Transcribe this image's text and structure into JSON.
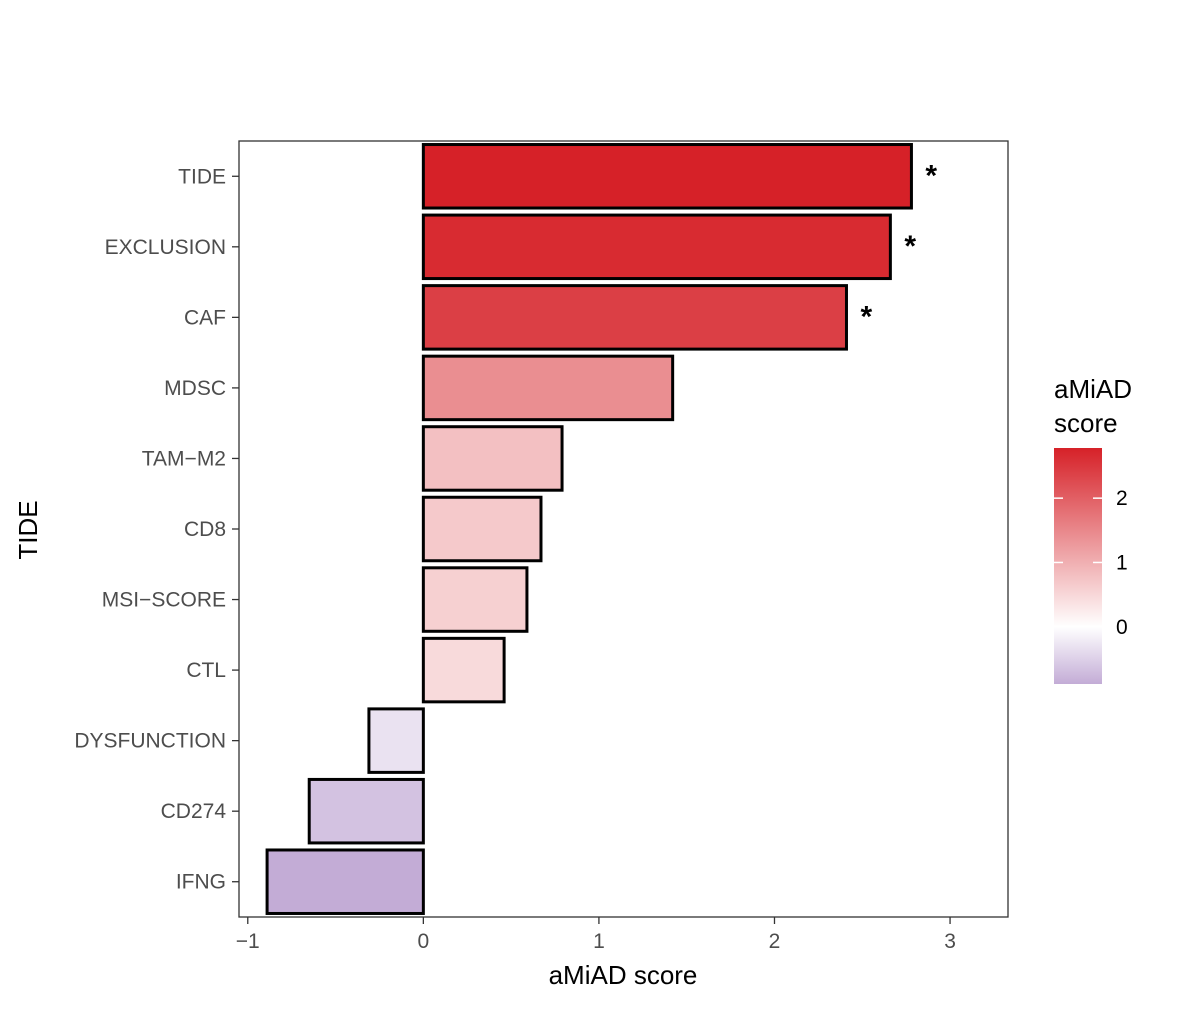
{
  "chart_data": {
    "type": "bar",
    "orientation": "horizontal",
    "categories": [
      "TIDE",
      "EXCLUSION",
      "CAF",
      "MDSC",
      "TAM−M2",
      "CD8",
      "MSI−SCORE",
      "CTL",
      "DYSFUNCTION",
      "CD274",
      "IFNG"
    ],
    "values": [
      2.78,
      2.66,
      2.41,
      1.42,
      0.79,
      0.67,
      0.59,
      0.46,
      -0.31,
      -0.65,
      -0.89
    ],
    "significance": [
      "*",
      "*",
      "*",
      "",
      "",
      "",
      "",
      "",
      "",
      "",
      ""
    ],
    "xlabel": "aMiAD score",
    "ylabel": "TIDE",
    "xlim": [
      -1.05,
      3.33
    ],
    "xticks": [
      -1,
      0,
      1,
      2,
      3
    ],
    "xtick_labels": [
      "−1",
      "0",
      "1",
      "2",
      "3"
    ],
    "grid": false,
    "legend": {
      "title_lines": [
        "aMiAD",
        "score"
      ],
      "placement": "right",
      "ticks": [
        0,
        1,
        2
      ],
      "tick_labels": [
        "0",
        "1",
        "2"
      ],
      "range": [
        -0.89,
        2.78
      ]
    },
    "colors": {
      "low": "#c3acd6",
      "mid": "#ffffff",
      "high": "#d62128",
      "border": "#000000",
      "panel_border": "#333333"
    }
  }
}
